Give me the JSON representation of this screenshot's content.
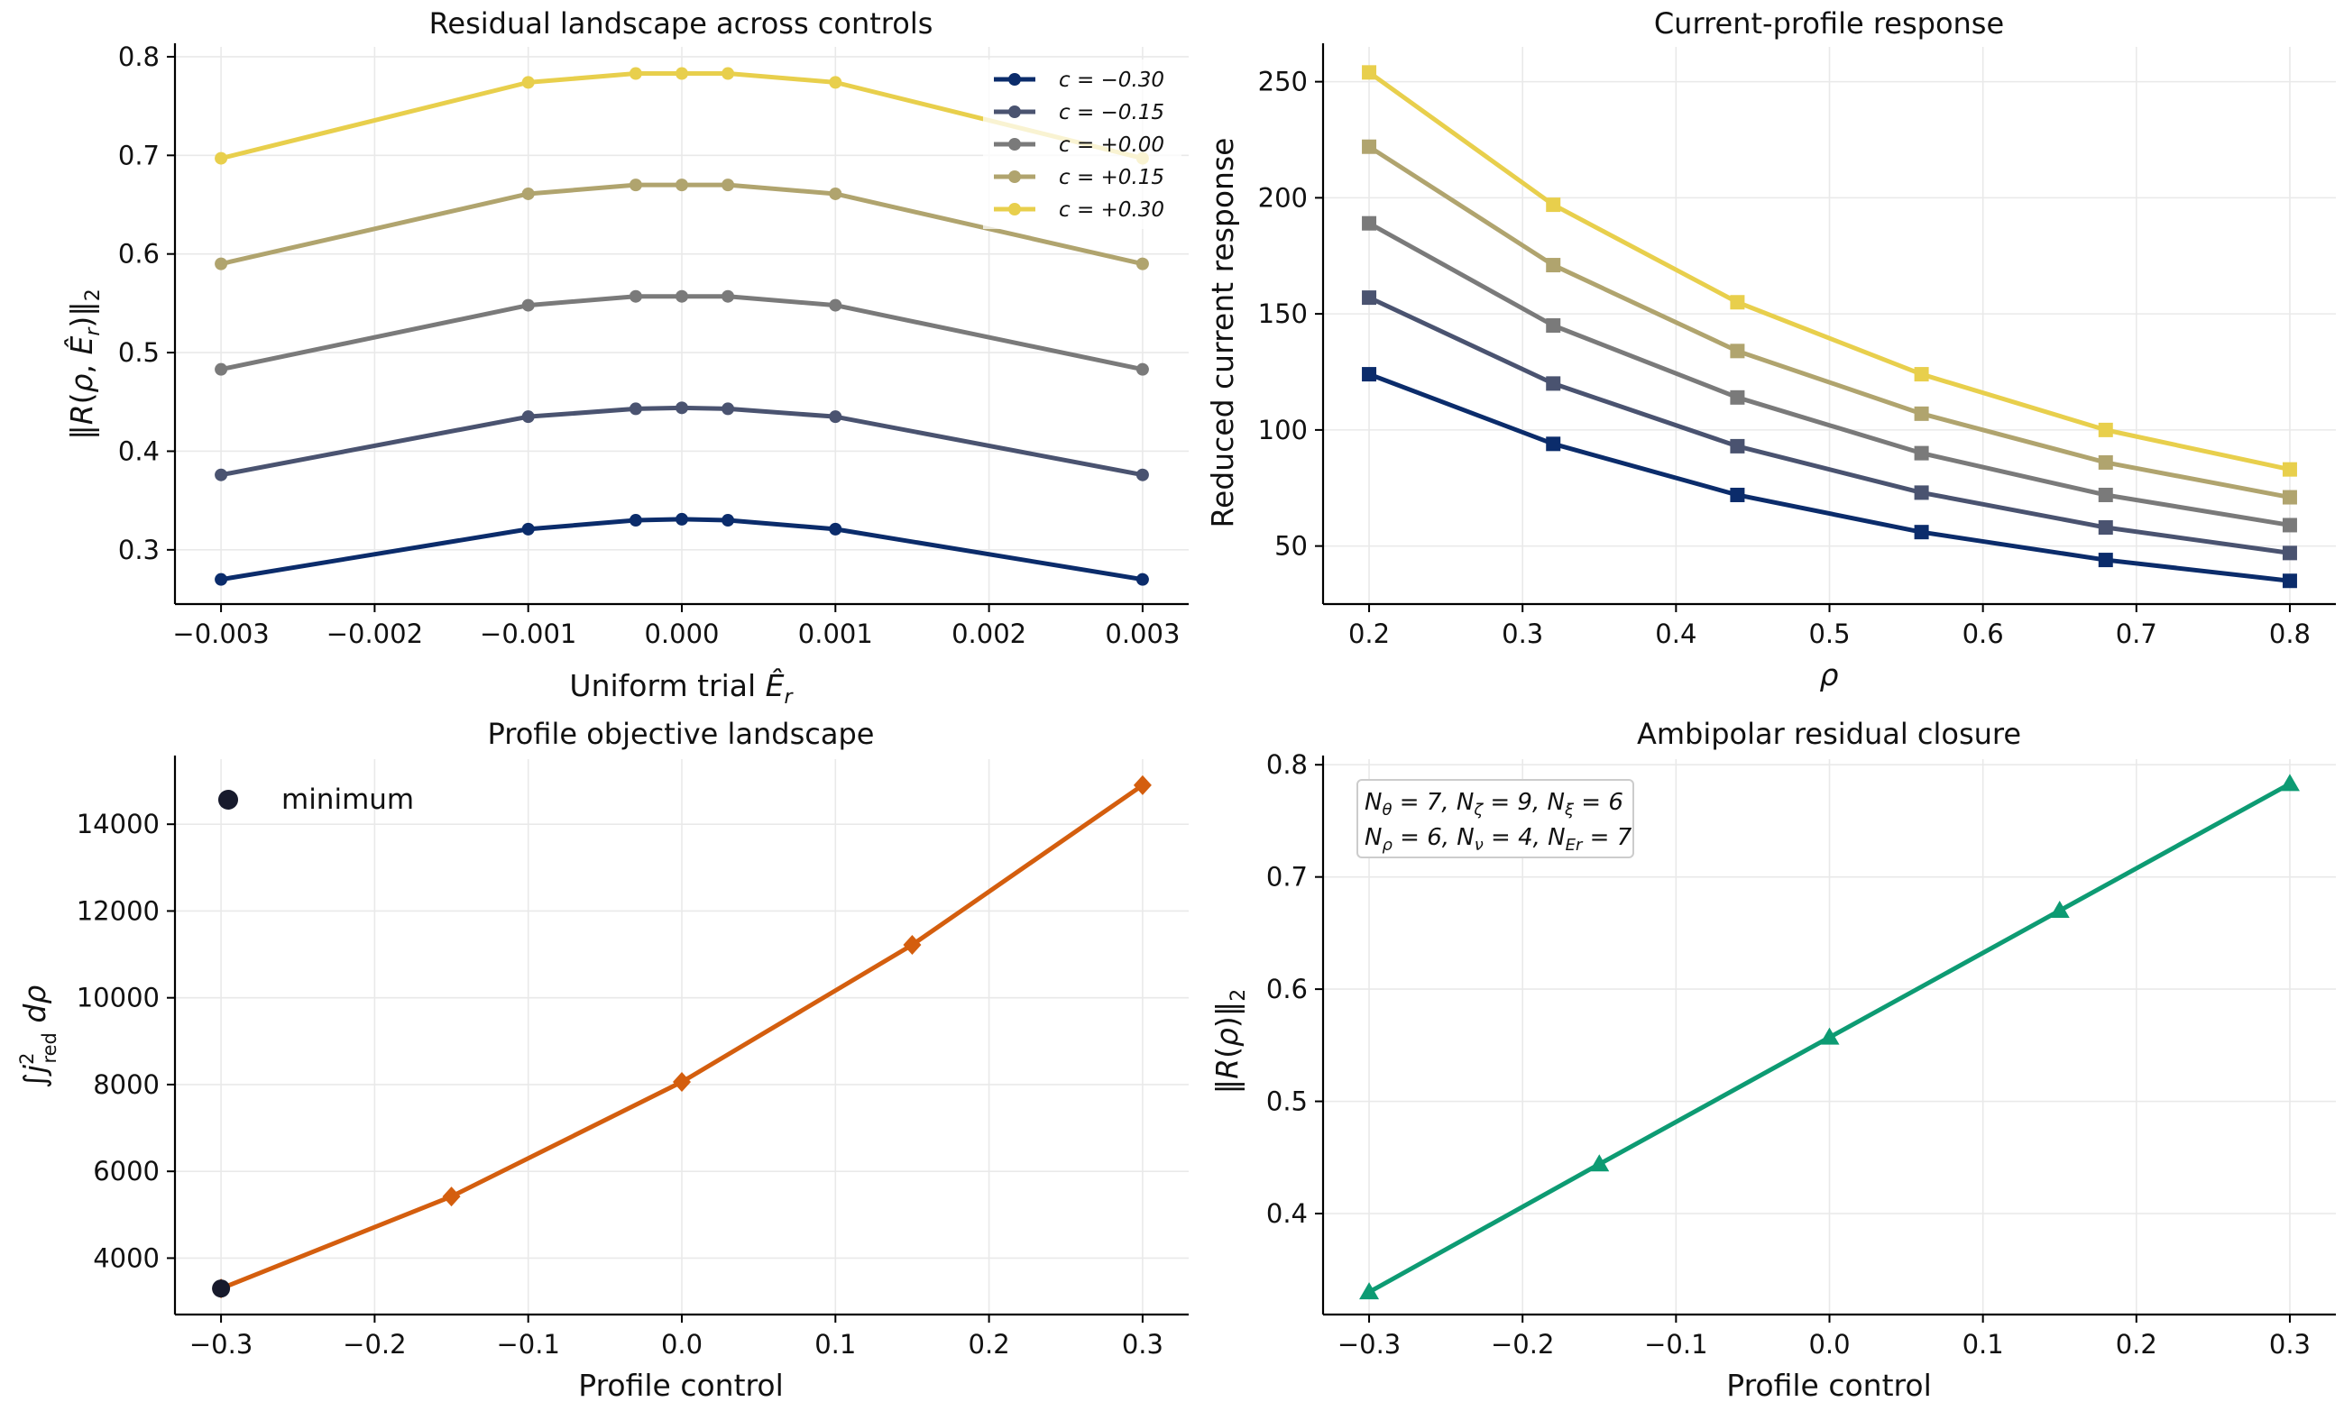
{
  "chart_data": [
    {
      "type": "line",
      "title": "Residual landscape across controls",
      "xlabel": "Uniform trial Ê_r",
      "ylabel": "‖R(ρ, Ê_r)‖₂",
      "xlim": [
        -0.0033,
        0.0033
      ],
      "ylim": [
        0.245,
        0.81
      ],
      "xticks": [
        -0.003,
        -0.002,
        -0.001,
        0.0,
        0.001,
        0.002,
        0.003
      ],
      "xtick_labels": [
        "−0.003",
        "−0.002",
        "−0.001",
        "0.000",
        "0.001",
        "0.002",
        "0.003"
      ],
      "yticks": [
        0.3,
        0.4,
        0.5,
        0.6,
        0.7,
        0.8
      ],
      "ytick_labels": [
        "0.3",
        "0.4",
        "0.5",
        "0.6",
        "0.7",
        "0.8"
      ],
      "grid": true,
      "legend_position": "top-right",
      "marker": "circle",
      "x": [
        -0.003,
        -0.001,
        -0.0003,
        0.0,
        0.0003,
        0.001,
        0.003
      ],
      "series": [
        {
          "name": "c = −0.30",
          "color": "#0b2c6b",
          "values": [
            0.27,
            0.321,
            0.33,
            0.331,
            0.33,
            0.321,
            0.27
          ]
        },
        {
          "name": "c = −0.15",
          "color": "#4a5370",
          "values": [
            0.376,
            0.435,
            0.443,
            0.444,
            0.443,
            0.435,
            0.376
          ]
        },
        {
          "name": "c = +0.00",
          "color": "#7a7a7a",
          "values": [
            0.483,
            0.548,
            0.557,
            0.557,
            0.557,
            0.548,
            0.483
          ]
        },
        {
          "name": "c = +0.15",
          "color": "#b0a46e",
          "values": [
            0.59,
            0.661,
            0.67,
            0.67,
            0.67,
            0.661,
            0.59
          ]
        },
        {
          "name": "c = +0.30",
          "color": "#e8cf4c",
          "values": [
            0.697,
            0.774,
            0.783,
            0.783,
            0.783,
            0.774,
            0.697
          ]
        }
      ]
    },
    {
      "type": "line",
      "title": "Current-profile response",
      "xlabel": "ρ",
      "ylabel": "Reduced current response",
      "xlim": [
        0.17,
        0.83
      ],
      "ylim": [
        25,
        265
      ],
      "xticks": [
        0.2,
        0.3,
        0.4,
        0.5,
        0.6,
        0.7,
        0.8
      ],
      "xtick_labels": [
        "0.2",
        "0.3",
        "0.4",
        "0.5",
        "0.6",
        "0.7",
        "0.8"
      ],
      "yticks": [
        50,
        100,
        150,
        200,
        250
      ],
      "ytick_labels": [
        "50",
        "100",
        "150",
        "200",
        "250"
      ],
      "grid": true,
      "marker": "square",
      "x": [
        0.2,
        0.32,
        0.44,
        0.56,
        0.68,
        0.8
      ],
      "series": [
        {
          "color": "#0b2c6b",
          "values": [
            124,
            94,
            72,
            56,
            44,
            35
          ]
        },
        {
          "color": "#4a5370",
          "values": [
            157,
            120,
            93,
            73,
            58,
            47
          ]
        },
        {
          "color": "#7a7a7a",
          "values": [
            189,
            145,
            114,
            90,
            72,
            59
          ]
        },
        {
          "color": "#b0a46e",
          "values": [
            222,
            171,
            134,
            107,
            86,
            71
          ]
        },
        {
          "color": "#e8cf4c",
          "values": [
            254,
            197,
            155,
            124,
            100,
            83
          ]
        }
      ]
    },
    {
      "type": "line",
      "title": "Profile objective landscape",
      "xlabel": "Profile control",
      "ylabel": "∫j²_red dρ",
      "xlim": [
        -0.33,
        0.33
      ],
      "ylim": [
        2700,
        15500
      ],
      "xticks": [
        -0.3,
        -0.2,
        -0.1,
        0.0,
        0.1,
        0.2,
        0.3
      ],
      "xtick_labels": [
        "−0.3",
        "−0.2",
        "−0.1",
        "0.0",
        "0.1",
        "0.2",
        "0.3"
      ],
      "yticks": [
        4000,
        6000,
        8000,
        10000,
        12000,
        14000
      ],
      "ytick_labels": [
        "4000",
        "6000",
        "8000",
        "10000",
        "12000",
        "14000"
      ],
      "grid": true,
      "legend_position": "top-left",
      "marker": "diamond",
      "x": [
        -0.3,
        -0.15,
        0.0,
        0.15,
        0.3
      ],
      "series": [
        {
          "color": "#d45e0e",
          "values": [
            3300,
            5420,
            8060,
            11220,
            14900
          ]
        }
      ],
      "minimum": {
        "label": "minimum",
        "x": -0.3,
        "y": 3300,
        "color": "#171a2c"
      }
    },
    {
      "type": "line",
      "title": "Ambipolar residual closure",
      "xlabel": "Profile control",
      "ylabel": "‖R(ρ)‖₂",
      "xlim": [
        -0.33,
        0.33
      ],
      "ylim": [
        0.31,
        0.805
      ],
      "xticks": [
        -0.3,
        -0.2,
        -0.1,
        0.0,
        0.1,
        0.2,
        0.3
      ],
      "xtick_labels": [
        "−0.3",
        "−0.2",
        "−0.1",
        "0.0",
        "0.1",
        "0.2",
        "0.3"
      ],
      "yticks": [
        0.4,
        0.5,
        0.6,
        0.7,
        0.8
      ],
      "ytick_labels": [
        "0.4",
        "0.5",
        "0.6",
        "0.7",
        "0.8"
      ],
      "grid": true,
      "marker": "triangle",
      "x": [
        -0.3,
        -0.15,
        0.0,
        0.15,
        0.3
      ],
      "series": [
        {
          "color": "#0d9b73",
          "values": [
            0.33,
            0.444,
            0.557,
            0.67,
            0.783
          ]
        }
      ],
      "annotation": [
        "Nθ = 7, Nζ = 9, Nξ = 6",
        "Nρ = 6, Nν = 4, NEr = 7"
      ]
    }
  ]
}
